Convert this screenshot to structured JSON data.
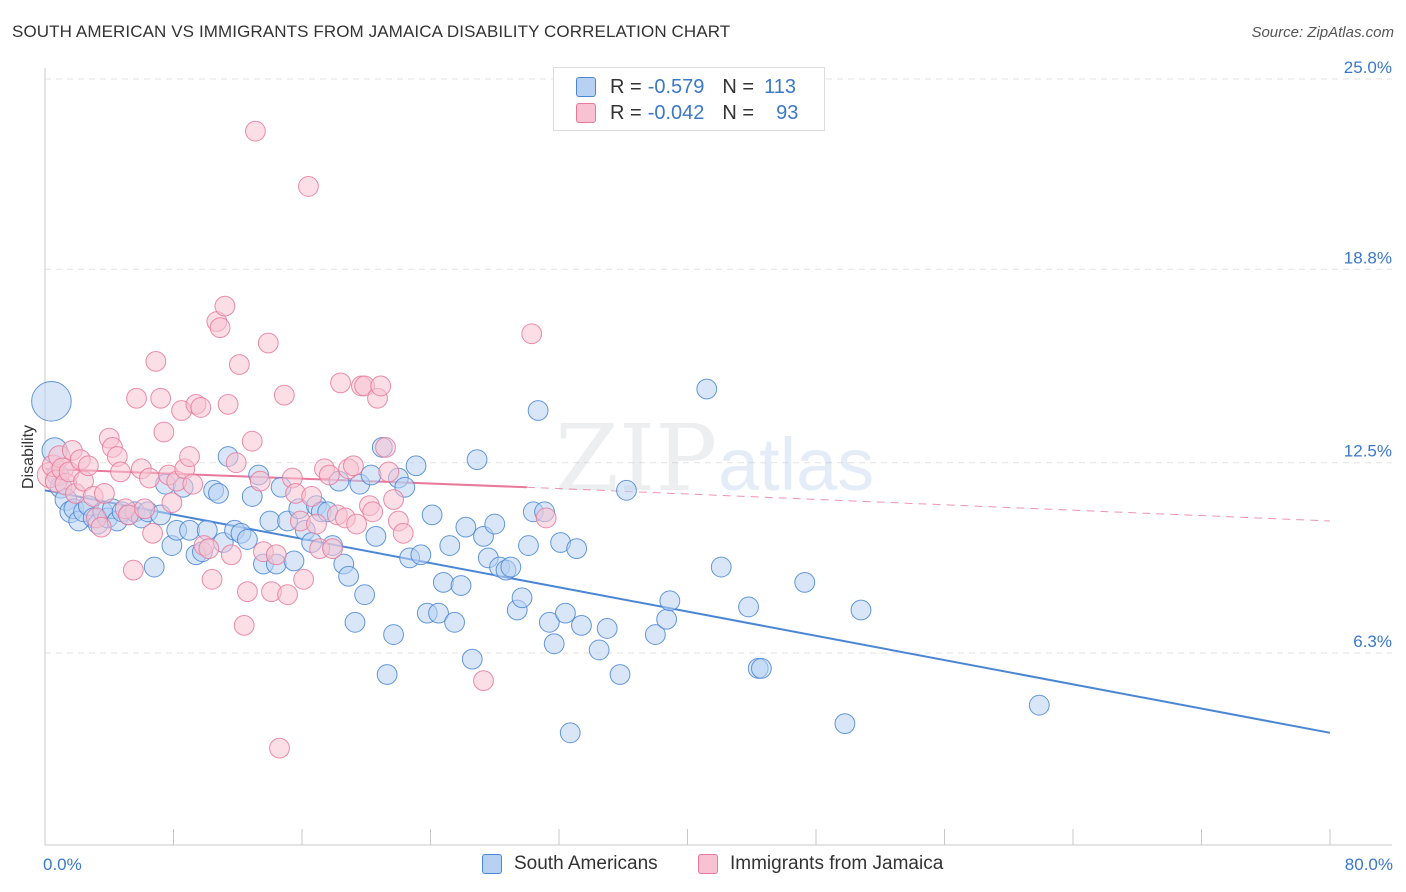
{
  "title": "SOUTH AMERICAN VS IMMIGRANTS FROM JAMAICA DISABILITY CORRELATION CHART",
  "source": "Source: ZipAtlas.com",
  "watermark": {
    "zip": "ZIP",
    "atlas": "atlas"
  },
  "legend": {
    "r_label": "R =",
    "n_label": "N =",
    "rows": [
      {
        "r": "-0.579",
        "n": "113",
        "color": "#4a86d4",
        "fill": "#b8d1f2"
      },
      {
        "r": "-0.042",
        "n": "93",
        "color": "#e8799a",
        "fill": "#f7c2d1"
      }
    ]
  },
  "bottom_legend": [
    "South Americans",
    "Immigrants from Jamaica"
  ],
  "chart_data": {
    "type": "scatter",
    "title": "SOUTH AMERICAN VS IMMIGRANTS FROM JAMAICA DISABILITY CORRELATION CHART",
    "xlabel": "",
    "ylabel": "Disability",
    "xlim": [
      0,
      80
    ],
    "ylim": [
      0,
      26.2
    ],
    "x_tick_labels": [
      "0.0%",
      "80.0%"
    ],
    "y_ticks": [
      {
        "value": 6.3,
        "label": "6.3%"
      },
      {
        "value": 12.5,
        "label": "12.5%"
      },
      {
        "value": 18.8,
        "label": "18.8%"
      },
      {
        "value": 25.0,
        "label": "25.0%"
      }
    ],
    "grid": "horizontal dashed",
    "legend_position": "top-center",
    "series": [
      {
        "name": "South Americans",
        "color": "#4a86d4",
        "fill": "#b8d1f2",
        "R": -0.579,
        "N": 113,
        "trend": {
          "x": [
            0,
            80
          ],
          "y": [
            11.6,
            3.7
          ],
          "style": "solid"
        },
        "points": [
          [
            0.4,
            14.5,
            22
          ],
          [
            0.6,
            12.9,
            14
          ],
          [
            0.8,
            12.1,
            12
          ],
          [
            1.0,
            11.7,
            12
          ],
          [
            1.3,
            11.3,
            12
          ],
          [
            1.6,
            10.9,
            12
          ],
          [
            1.8,
            11.0,
            11
          ],
          [
            2.1,
            10.6,
            11
          ],
          [
            2.4,
            10.9,
            11
          ],
          [
            2.7,
            11.1,
            11
          ],
          [
            3.0,
            10.7,
            11
          ],
          [
            3.3,
            10.5,
            11
          ],
          [
            3.6,
            10.9,
            11
          ],
          [
            3.9,
            10.7,
            11
          ],
          [
            4.2,
            11.0,
            11
          ],
          [
            4.5,
            10.6,
            11
          ],
          [
            4.8,
            10.9,
            11
          ],
          [
            5.2,
            10.8,
            11
          ],
          [
            5.6,
            10.9,
            11
          ],
          [
            6.0,
            10.7,
            11
          ],
          [
            6.4,
            10.9,
            11
          ],
          [
            6.8,
            9.1,
            11
          ],
          [
            7.2,
            10.8,
            11
          ],
          [
            7.5,
            11.8,
            11
          ],
          [
            7.9,
            9.8,
            11
          ],
          [
            8.2,
            10.3,
            11
          ],
          [
            8.6,
            11.7,
            11
          ],
          [
            9.0,
            10.3,
            11
          ],
          [
            9.4,
            9.5,
            11
          ],
          [
            9.8,
            9.6,
            11
          ],
          [
            10.1,
            10.3,
            11
          ],
          [
            10.5,
            11.6,
            11
          ],
          [
            10.8,
            11.5,
            11
          ],
          [
            11.1,
            9.9,
            11
          ],
          [
            11.4,
            12.7,
            11
          ],
          [
            11.8,
            10.3,
            11
          ],
          [
            12.2,
            10.2,
            11
          ],
          [
            12.6,
            10.0,
            11
          ],
          [
            12.9,
            11.4,
            11
          ],
          [
            13.3,
            12.1,
            11
          ],
          [
            13.6,
            9.2,
            11
          ],
          [
            14.0,
            10.6,
            11
          ],
          [
            14.4,
            9.2,
            11
          ],
          [
            14.7,
            11.7,
            11
          ],
          [
            15.1,
            10.6,
            11
          ],
          [
            15.5,
            9.3,
            11
          ],
          [
            15.8,
            11.0,
            11
          ],
          [
            16.2,
            10.3,
            11
          ],
          [
            16.6,
            9.9,
            11
          ],
          [
            16.9,
            11.1,
            11
          ],
          [
            17.2,
            10.9,
            11
          ],
          [
            17.6,
            10.9,
            11
          ],
          [
            17.9,
            9.8,
            11
          ],
          [
            18.3,
            11.9,
            11
          ],
          [
            18.6,
            9.2,
            11
          ],
          [
            18.9,
            8.8,
            11
          ],
          [
            19.3,
            7.3,
            11
          ],
          [
            19.6,
            11.8,
            11
          ],
          [
            19.9,
            8.2,
            11
          ],
          [
            20.3,
            12.1,
            11
          ],
          [
            20.6,
            10.1,
            11
          ],
          [
            21.0,
            13.0,
            11
          ],
          [
            21.3,
            5.6,
            11
          ],
          [
            21.7,
            6.9,
            11
          ],
          [
            22.0,
            12.0,
            11
          ],
          [
            22.4,
            11.7,
            11
          ],
          [
            22.7,
            9.4,
            11
          ],
          [
            23.1,
            12.4,
            11
          ],
          [
            23.4,
            9.5,
            11
          ],
          [
            23.8,
            7.6,
            11
          ],
          [
            24.1,
            10.8,
            11
          ],
          [
            24.5,
            7.6,
            11
          ],
          [
            24.8,
            8.6,
            11
          ],
          [
            25.2,
            9.8,
            11
          ],
          [
            25.5,
            7.3,
            11
          ],
          [
            25.9,
            8.5,
            11
          ],
          [
            26.2,
            10.4,
            11
          ],
          [
            26.6,
            6.1,
            11
          ],
          [
            26.9,
            12.6,
            11
          ],
          [
            27.3,
            10.1,
            11
          ],
          [
            27.6,
            9.4,
            11
          ],
          [
            28.0,
            10.5,
            11
          ],
          [
            28.3,
            9.1,
            11
          ],
          [
            28.7,
            9.0,
            11
          ],
          [
            29.0,
            9.1,
            11
          ],
          [
            29.4,
            7.7,
            11
          ],
          [
            29.7,
            8.1,
            11
          ],
          [
            30.1,
            9.8,
            11
          ],
          [
            30.4,
            10.9,
            11
          ],
          [
            30.7,
            14.2,
            11
          ],
          [
            31.1,
            10.9,
            11
          ],
          [
            31.4,
            7.3,
            11
          ],
          [
            31.7,
            6.6,
            11
          ],
          [
            32.1,
            9.9,
            11
          ],
          [
            32.4,
            7.6,
            11
          ],
          [
            32.7,
            3.7,
            11
          ],
          [
            33.1,
            9.7,
            11
          ],
          [
            33.4,
            7.2,
            11
          ],
          [
            34.5,
            6.4,
            11
          ],
          [
            35.0,
            7.1,
            11
          ],
          [
            35.8,
            5.6,
            11
          ],
          [
            36.2,
            11.6,
            11
          ],
          [
            38.0,
            6.9,
            11
          ],
          [
            38.7,
            7.4,
            11
          ],
          [
            38.9,
            8.0,
            11
          ],
          [
            41.2,
            14.9,
            11
          ],
          [
            42.1,
            9.1,
            11
          ],
          [
            43.8,
            7.8,
            11
          ],
          [
            44.4,
            5.8,
            11
          ],
          [
            44.6,
            5.8,
            11
          ],
          [
            47.3,
            8.6,
            11
          ],
          [
            49.8,
            4.0,
            11
          ],
          [
            50.8,
            7.7,
            11
          ],
          [
            61.9,
            4.6,
            11
          ]
        ]
      },
      {
        "name": "Immigrants from Jamaica",
        "color": "#e8799a",
        "fill": "#f7c2d1",
        "R": -0.042,
        "N": 93,
        "trend": {
          "x": [
            0,
            30
          ],
          "y": [
            12.3,
            11.7
          ],
          "style": "solid",
          "extension": {
            "x": [
              30,
              80
            ],
            "y": [
              11.7,
              10.6
            ],
            "style": "dashed"
          }
        },
        "points": [
          [
            0.3,
            12.1,
            14
          ],
          [
            0.5,
            12.4,
            12
          ],
          [
            0.7,
            11.9,
            12
          ],
          [
            0.9,
            12.7,
            12
          ],
          [
            1.1,
            12.3,
            12
          ],
          [
            1.3,
            11.8,
            12
          ],
          [
            1.5,
            12.2,
            11
          ],
          [
            1.7,
            12.9,
            11
          ],
          [
            1.9,
            11.5,
            11
          ],
          [
            2.2,
            12.6,
            11
          ],
          [
            2.4,
            11.9,
            11
          ],
          [
            2.7,
            12.4,
            11
          ],
          [
            3.0,
            11.4,
            11
          ],
          [
            3.2,
            10.7,
            11
          ],
          [
            3.5,
            10.4,
            11
          ],
          [
            3.7,
            11.5,
            11
          ],
          [
            4.0,
            13.3,
            11
          ],
          [
            4.2,
            13.0,
            11
          ],
          [
            4.5,
            12.7,
            11
          ],
          [
            4.7,
            12.2,
            11
          ],
          [
            5.0,
            11.0,
            11
          ],
          [
            5.2,
            10.8,
            11
          ],
          [
            5.5,
            9.0,
            11
          ],
          [
            5.7,
            14.6,
            11
          ],
          [
            6.0,
            12.3,
            11
          ],
          [
            6.2,
            11.0,
            11
          ],
          [
            6.5,
            12.0,
            11
          ],
          [
            6.7,
            10.2,
            11
          ],
          [
            6.9,
            15.8,
            11
          ],
          [
            7.2,
            14.6,
            11
          ],
          [
            7.4,
            13.5,
            11
          ],
          [
            7.7,
            12.1,
            11
          ],
          [
            7.9,
            11.2,
            11
          ],
          [
            8.2,
            11.9,
            11
          ],
          [
            8.5,
            14.2,
            11
          ],
          [
            8.7,
            12.3,
            11
          ],
          [
            9.0,
            12.7,
            11
          ],
          [
            9.2,
            11.8,
            11
          ],
          [
            9.4,
            14.4,
            11
          ],
          [
            9.7,
            14.3,
            11
          ],
          [
            9.9,
            9.8,
            11
          ],
          [
            10.2,
            9.7,
            11
          ],
          [
            10.4,
            8.7,
            11
          ],
          [
            10.7,
            17.1,
            11
          ],
          [
            10.9,
            16.9,
            11
          ],
          [
            11.2,
            17.6,
            11
          ],
          [
            11.4,
            14.4,
            11
          ],
          [
            11.6,
            9.5,
            11
          ],
          [
            11.9,
            12.5,
            11
          ],
          [
            12.1,
            15.7,
            11
          ],
          [
            12.4,
            7.2,
            11
          ],
          [
            12.6,
            8.3,
            11
          ],
          [
            12.9,
            13.2,
            11
          ],
          [
            13.1,
            23.3,
            11
          ],
          [
            13.4,
            11.9,
            11
          ],
          [
            13.6,
            9.6,
            11
          ],
          [
            13.9,
            16.4,
            11
          ],
          [
            14.1,
            8.3,
            11
          ],
          [
            14.4,
            9.5,
            11
          ],
          [
            14.6,
            3.2,
            11
          ],
          [
            14.9,
            14.7,
            11
          ],
          [
            15.1,
            8.2,
            11
          ],
          [
            15.4,
            12.0,
            11
          ],
          [
            15.6,
            11.5,
            11
          ],
          [
            15.9,
            10.6,
            11
          ],
          [
            16.1,
            8.7,
            11
          ],
          [
            16.4,
            21.5,
            11
          ],
          [
            16.6,
            11.4,
            11
          ],
          [
            16.9,
            10.5,
            11
          ],
          [
            17.1,
            9.7,
            11
          ],
          [
            17.4,
            12.3,
            11
          ],
          [
            17.7,
            12.1,
            11
          ],
          [
            17.9,
            9.7,
            11
          ],
          [
            18.2,
            10.8,
            11
          ],
          [
            18.4,
            15.1,
            11
          ],
          [
            18.7,
            10.7,
            11
          ],
          [
            18.9,
            12.3,
            11
          ],
          [
            19.2,
            12.4,
            11
          ],
          [
            19.4,
            10.5,
            11
          ],
          [
            19.7,
            15.0,
            11
          ],
          [
            19.9,
            15.0,
            11
          ],
          [
            20.2,
            11.1,
            11
          ],
          [
            20.4,
            10.9,
            11
          ],
          [
            20.7,
            14.6,
            11
          ],
          [
            20.9,
            15.0,
            11
          ],
          [
            21.2,
            13.0,
            11
          ],
          [
            21.4,
            12.2,
            11
          ],
          [
            21.7,
            11.3,
            11
          ],
          [
            22.0,
            10.6,
            11
          ],
          [
            22.3,
            10.2,
            11
          ],
          [
            27.3,
            5.4,
            11
          ],
          [
            30.3,
            16.7,
            11
          ],
          [
            31.2,
            10.7,
            11
          ]
        ]
      }
    ]
  }
}
